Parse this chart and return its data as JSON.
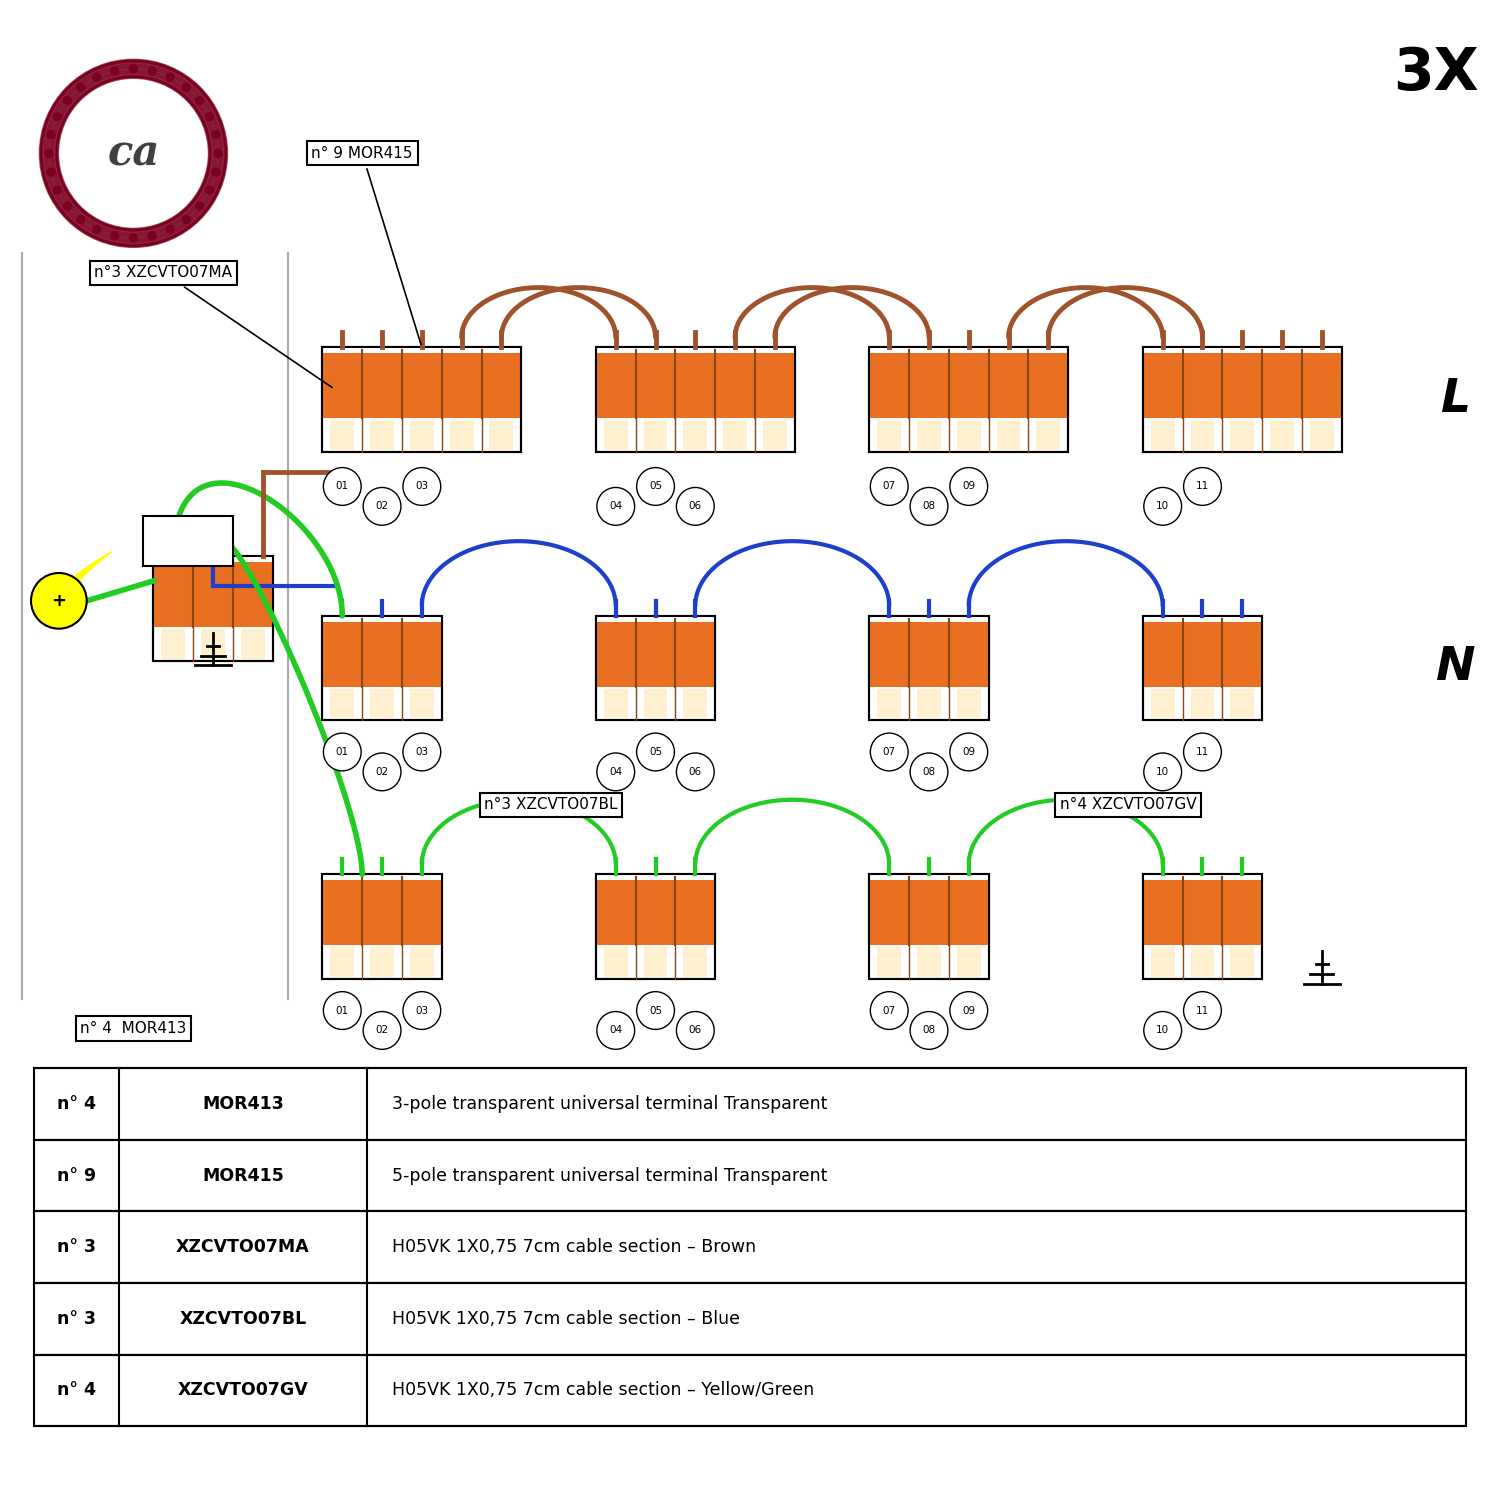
{
  "bg_color": "#FFFFFF",
  "panel_color": "#EFEFEF",
  "orange": "#E87020",
  "brown_wire": "#A0522D",
  "brown_div": "#8B4513",
  "blue": "#1E3ECC",
  "green": "#22CC22",
  "yellow": "#FFFF00",
  "dark_red": "#7B0020",
  "gray_text": "#404040",
  "black": "#000000",
  "white": "#FFFFFF",
  "cream": "#FFF0D0",
  "table_rows": [
    [
      "n° 4",
      "MOR413",
      "3-pole transparent universal terminal Transparent"
    ],
    [
      "n° 9",
      "MOR415",
      "5-pole transparent universal terminal Transparent"
    ],
    [
      "n° 3",
      "XZCVTO07MA",
      "H05VK 1X0,75 7cm cable section – Brown"
    ],
    [
      "n° 3",
      "XZCVTO07BL",
      "H05VK 1X0,75 7cm cable section – Blue"
    ],
    [
      "n° 4",
      "XZCVTO07GV",
      "H05VK 1X0,75 7cm cable section – Yellow/Green"
    ]
  ]
}
